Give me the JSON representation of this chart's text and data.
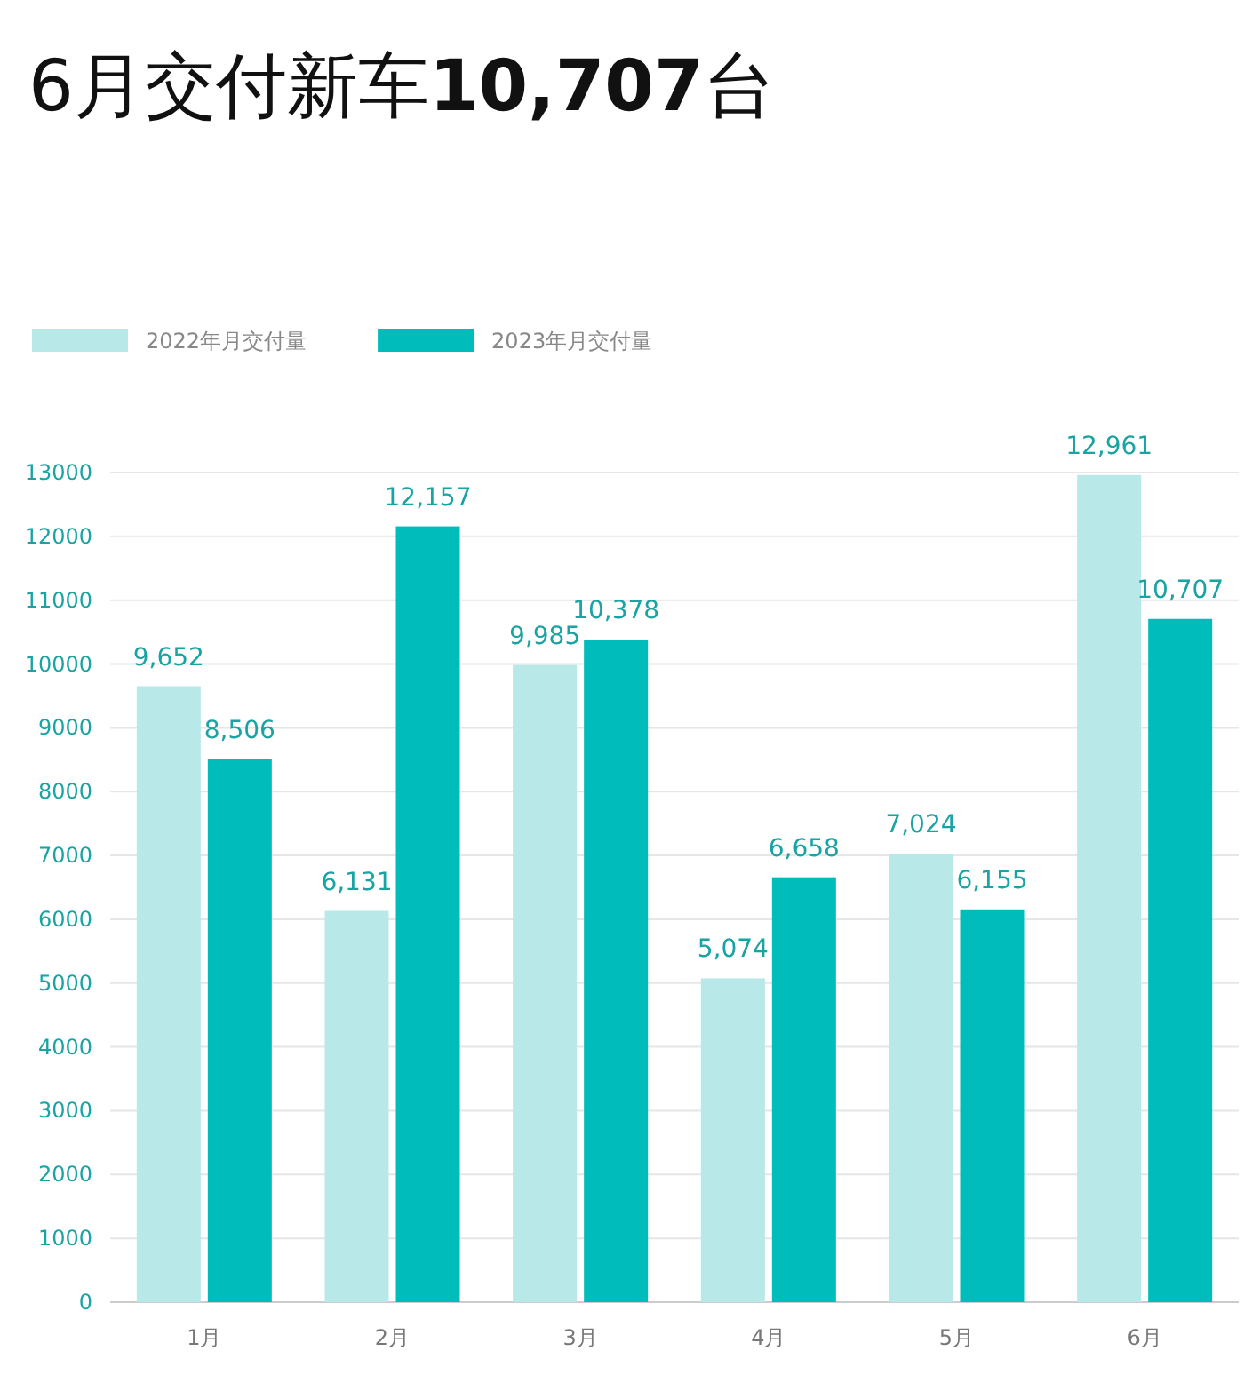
{
  "chart_data": {
    "type": "bar",
    "title": "6月交付新车10,707台",
    "categories": [
      "1月",
      "2月",
      "3月",
      "4月",
      "5月",
      "6月"
    ],
    "series": [
      {
        "name": "2022年月交付量",
        "color": "#b8e8e8",
        "values": [
          9652,
          6131,
          9985,
          5074,
          7024,
          12961
        ]
      },
      {
        "name": "2023年月交付量",
        "color": "#00bdbb",
        "values": [
          8506,
          12157,
          10378,
          6658,
          6155,
          10707
        ]
      }
    ],
    "value_labels": [
      [
        "9,652",
        "6,131",
        "9,985",
        "5,074",
        "7,024",
        "12,961"
      ],
      [
        "8,506",
        "12,157",
        "10,378",
        "6,658",
        "6,155",
        "10,707"
      ]
    ],
    "ylim": [
      0,
      13000
    ],
    "yticks": [
      0,
      1000,
      2000,
      3000,
      4000,
      5000,
      6000,
      7000,
      8000,
      9000,
      10000,
      11000,
      12000,
      13000
    ],
    "grid": "y",
    "legend": "top left"
  }
}
